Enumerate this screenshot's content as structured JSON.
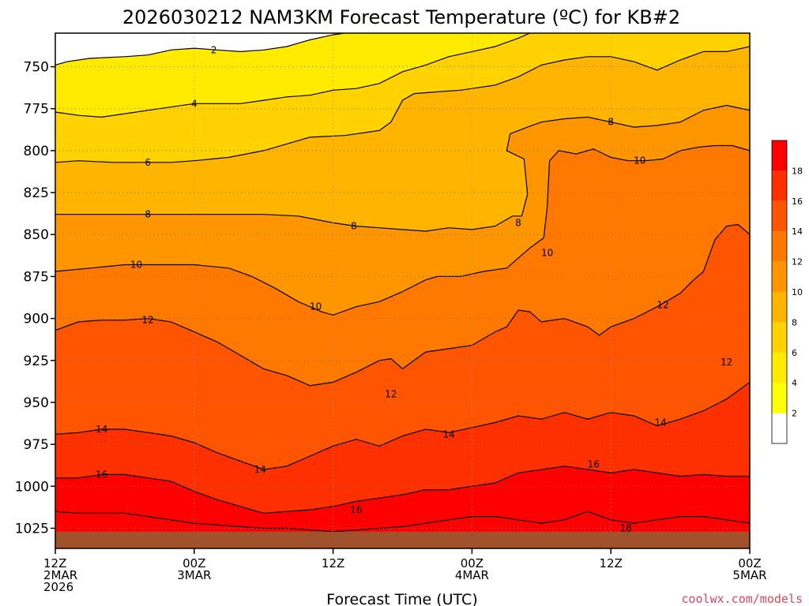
{
  "chart_data": {
    "type": "contour",
    "title": "2026030212 NAM3KM Forecast Temperature (ºC) for KB#2",
    "xlabel": "Forecast Time (UTC)",
    "ylabel": "",
    "x_ticks": [
      {
        "hour": 0,
        "lines": [
          "12Z",
          "2MAR",
          "2026"
        ]
      },
      {
        "hour": 12,
        "lines": [
          "00Z",
          "3MAR"
        ]
      },
      {
        "hour": 24,
        "lines": [
          "12Z"
        ]
      },
      {
        "hour": 36,
        "lines": [
          "00Z",
          "4MAR"
        ]
      },
      {
        "hour": 48,
        "lines": [
          "12Z"
        ]
      },
      {
        "hour": 60,
        "lines": [
          "00Z",
          "5MAR"
        ]
      }
    ],
    "xlim": [
      0,
      60
    ],
    "y_ticks": [
      750,
      775,
      800,
      825,
      850,
      875,
      900,
      925,
      950,
      975,
      1000,
      1025
    ],
    "ylim": [
      730,
      1037
    ],
    "y_inverted": true,
    "surface_pressure_hPa": 1027,
    "grid": true,
    "colorbar": {
      "levels": [
        2,
        4,
        6,
        8,
        10,
        12,
        14,
        16,
        18
      ],
      "colors": [
        "#ffffff",
        "#ffff00",
        "#ffea00",
        "#ffd200",
        "#ffb400",
        "#ff9600",
        "#ff7800",
        "#ff5400",
        "#ff3000",
        "#ff0000"
      ],
      "placement": "right"
    },
    "isotherms": [
      {
        "level": 2,
        "labels": [
          {
            "hour": 13.7,
            "p": 740
          }
        ],
        "points": [
          [
            0,
            749
          ],
          [
            1,
            747
          ],
          [
            3,
            745
          ],
          [
            6,
            744
          ],
          [
            8,
            743
          ],
          [
            10,
            740
          ],
          [
            12,
            739
          ],
          [
            14,
            740
          ],
          [
            16,
            741
          ],
          [
            18,
            740
          ],
          [
            20,
            738
          ],
          [
            22,
            734
          ],
          [
            24,
            731
          ],
          [
            25,
            730
          ]
        ]
      },
      {
        "level": 4,
        "labels": [
          {
            "hour": 12,
            "p": 772
          }
        ],
        "points": [
          [
            0,
            777
          ],
          [
            2,
            779
          ],
          [
            4,
            780
          ],
          [
            6,
            778
          ],
          [
            9,
            775
          ],
          [
            12,
            772
          ],
          [
            14,
            772
          ],
          [
            16,
            772
          ],
          [
            18,
            770
          ],
          [
            20,
            768
          ],
          [
            22,
            767
          ],
          [
            24,
            764
          ],
          [
            26,
            763
          ],
          [
            28,
            760
          ],
          [
            30,
            753
          ],
          [
            32,
            749
          ],
          [
            34,
            744
          ],
          [
            36,
            741
          ],
          [
            38,
            738
          ],
          [
            40,
            733
          ],
          [
            41,
            730
          ]
        ]
      },
      {
        "level": 6,
        "labels": [
          {
            "hour": 8,
            "p": 807
          }
        ],
        "points": [
          [
            0,
            807
          ],
          [
            2,
            806
          ],
          [
            5,
            807
          ],
          [
            8,
            807
          ],
          [
            10,
            807
          ],
          [
            12,
            806
          ],
          [
            15,
            804
          ],
          [
            18,
            800
          ],
          [
            20,
            796
          ],
          [
            22,
            792
          ],
          [
            25,
            791
          ],
          [
            28,
            788
          ],
          [
            29,
            783
          ],
          [
            30,
            770
          ],
          [
            31,
            766
          ],
          [
            33,
            765
          ],
          [
            35,
            764
          ],
          [
            36,
            763
          ],
          [
            38,
            761
          ],
          [
            40,
            756
          ],
          [
            42,
            749
          ],
          [
            44,
            746
          ],
          [
            46,
            744
          ],
          [
            48,
            744
          ],
          [
            50,
            747
          ],
          [
            52,
            752
          ],
          [
            54,
            746
          ],
          [
            56,
            741
          ],
          [
            58,
            741
          ],
          [
            60,
            738
          ]
        ]
      },
      {
        "level": 8,
        "labels": [
          {
            "hour": 8,
            "p": 838
          },
          {
            "hour": 25.8,
            "p": 845
          },
          {
            "hour": 40,
            "p": 843
          },
          {
            "hour": 48,
            "p": 783
          }
        ],
        "points": [
          [
            0,
            838
          ],
          [
            3,
            838
          ],
          [
            6,
            838
          ],
          [
            9,
            838
          ],
          [
            12,
            838
          ],
          [
            15,
            838
          ],
          [
            18,
            838
          ],
          [
            21,
            839
          ],
          [
            24,
            843
          ],
          [
            26,
            845
          ],
          [
            28,
            846
          ],
          [
            30,
            847
          ],
          [
            32,
            848
          ],
          [
            34,
            846
          ],
          [
            36,
            847
          ],
          [
            38,
            845
          ],
          [
            39.5,
            839
          ],
          [
            40.3,
            839
          ],
          [
            40.8,
            826
          ],
          [
            40.5,
            805
          ],
          [
            39,
            800
          ],
          [
            39.3,
            790
          ],
          [
            40.8,
            786
          ],
          [
            42,
            783
          ],
          [
            44,
            781
          ],
          [
            46,
            780
          ],
          [
            48,
            783
          ],
          [
            50,
            786
          ],
          [
            52,
            785
          ],
          [
            54,
            783
          ],
          [
            56,
            776
          ],
          [
            58,
            773
          ],
          [
            60,
            776
          ]
        ]
      },
      {
        "level": 10,
        "labels": [
          {
            "hour": 7,
            "p": 868
          },
          {
            "hour": 22.5,
            "p": 893
          },
          {
            "hour": 42.5,
            "p": 861
          },
          {
            "hour": 50.5,
            "p": 806
          }
        ],
        "points": [
          [
            0,
            872
          ],
          [
            3,
            870
          ],
          [
            6,
            868
          ],
          [
            9,
            868
          ],
          [
            12,
            868
          ],
          [
            15,
            870
          ],
          [
            17,
            875
          ],
          [
            19,
            882
          ],
          [
            21,
            890
          ],
          [
            23,
            896
          ],
          [
            24,
            898
          ],
          [
            26,
            893
          ],
          [
            28,
            890
          ],
          [
            30,
            884
          ],
          [
            32,
            877
          ],
          [
            33,
            875
          ],
          [
            35,
            875
          ],
          [
            37,
            872
          ],
          [
            39,
            870
          ],
          [
            41,
            858
          ],
          [
            42.2,
            852
          ],
          [
            42.5,
            834
          ],
          [
            42.7,
            806
          ],
          [
            43.5,
            800
          ],
          [
            45,
            802
          ],
          [
            46.5,
            799
          ],
          [
            48,
            804
          ],
          [
            49.5,
            806
          ],
          [
            51,
            806
          ],
          [
            52.5,
            805
          ],
          [
            54,
            800
          ],
          [
            55.5,
            798
          ],
          [
            57,
            797
          ],
          [
            58.5,
            797
          ],
          [
            60,
            800
          ]
        ]
      },
      {
        "level": 12,
        "labels": [
          {
            "hour": 8,
            "p": 901
          },
          {
            "hour": 58,
            "p": 926
          },
          {
            "hour": 29,
            "p": 945
          },
          {
            "hour": 52.5,
            "p": 892
          }
        ],
        "points": [
          [
            0,
            907
          ],
          [
            2,
            902
          ],
          [
            4,
            901
          ],
          [
            6,
            901
          ],
          [
            8,
            900
          ],
          [
            10,
            902
          ],
          [
            12,
            908
          ],
          [
            14,
            914
          ],
          [
            16,
            922
          ],
          [
            18,
            930
          ],
          [
            20,
            934
          ],
          [
            22,
            940
          ],
          [
            24,
            938
          ],
          [
            26,
            932
          ],
          [
            28,
            925
          ],
          [
            29,
            924
          ],
          [
            30,
            930
          ],
          [
            32,
            920
          ],
          [
            34,
            918
          ],
          [
            36,
            916
          ],
          [
            38,
            908
          ],
          [
            39,
            905
          ],
          [
            40,
            895
          ],
          [
            41,
            896
          ],
          [
            42,
            902
          ],
          [
            44,
            900
          ],
          [
            46,
            905
          ],
          [
            47,
            910
          ],
          [
            48,
            905
          ],
          [
            50,
            900
          ],
          [
            52,
            893
          ],
          [
            54,
            885
          ],
          [
            55,
            878
          ],
          [
            56,
            872
          ],
          [
            57,
            853
          ],
          [
            58,
            845
          ],
          [
            59,
            844
          ],
          [
            60,
            850
          ]
        ]
      },
      {
        "level": 14,
        "labels": [
          {
            "hour": 4,
            "p": 966
          },
          {
            "hour": 17.7,
            "p": 990
          },
          {
            "hour": 34,
            "p": 969
          },
          {
            "hour": 52.3,
            "p": 962
          }
        ],
        "points": [
          [
            0,
            969
          ],
          [
            2,
            968
          ],
          [
            4,
            966
          ],
          [
            6,
            966
          ],
          [
            8,
            968
          ],
          [
            10,
            970
          ],
          [
            12,
            974
          ],
          [
            14,
            980
          ],
          [
            16,
            985
          ],
          [
            18,
            990
          ],
          [
            20,
            988
          ],
          [
            22,
            982
          ],
          [
            24,
            976
          ],
          [
            26,
            972
          ],
          [
            28,
            976
          ],
          [
            30,
            970
          ],
          [
            32,
            966
          ],
          [
            34,
            968
          ],
          [
            36,
            965
          ],
          [
            38,
            962
          ],
          [
            40,
            958
          ],
          [
            42,
            960
          ],
          [
            44,
            956
          ],
          [
            46,
            960
          ],
          [
            48,
            956
          ],
          [
            50,
            958
          ],
          [
            52,
            964
          ],
          [
            54,
            960
          ],
          [
            56,
            955
          ],
          [
            58,
            948
          ],
          [
            60,
            938
          ]
        ]
      },
      {
        "level": 16,
        "labels": [
          {
            "hour": 4,
            "p": 993
          },
          {
            "hour": 26,
            "p": 1014
          },
          {
            "hour": 46.5,
            "p": 987
          }
        ],
        "points": [
          [
            0,
            995
          ],
          [
            2,
            995
          ],
          [
            4,
            993
          ],
          [
            6,
            993
          ],
          [
            8,
            995
          ],
          [
            10,
            997
          ],
          [
            12,
            1003
          ],
          [
            14,
            1008
          ],
          [
            16,
            1012
          ],
          [
            18,
            1016
          ],
          [
            20,
            1015
          ],
          [
            22,
            1014
          ],
          [
            24,
            1012
          ],
          [
            26,
            1009
          ],
          [
            28,
            1007
          ],
          [
            30,
            1005
          ],
          [
            32,
            1002
          ],
          [
            34,
            1002
          ],
          [
            36,
            1000
          ],
          [
            38,
            998
          ],
          [
            40,
            992
          ],
          [
            42,
            990
          ],
          [
            44,
            988
          ],
          [
            46,
            990
          ],
          [
            48,
            992
          ],
          [
            50,
            990
          ],
          [
            52,
            992
          ],
          [
            54,
            994
          ],
          [
            56,
            993
          ],
          [
            58,
            994
          ],
          [
            60,
            994
          ]
        ]
      },
      {
        "level": 18,
        "labels": [
          {
            "hour": 49.3,
            "p": 1025
          }
        ],
        "points": [
          [
            0,
            1015
          ],
          [
            2,
            1016
          ],
          [
            4,
            1016
          ],
          [
            6,
            1016
          ],
          [
            8,
            1018
          ],
          [
            10,
            1020
          ],
          [
            12,
            1022
          ],
          [
            14,
            1023
          ],
          [
            16,
            1024
          ],
          [
            18,
            1025
          ],
          [
            20,
            1025
          ],
          [
            22,
            1026
          ],
          [
            24,
            1027
          ],
          [
            26,
            1026
          ],
          [
            28,
            1025
          ],
          [
            30,
            1024
          ],
          [
            32,
            1022
          ],
          [
            34,
            1020
          ],
          [
            36,
            1018
          ],
          [
            38,
            1018
          ],
          [
            40,
            1020
          ],
          [
            42,
            1022
          ],
          [
            44,
            1020
          ],
          [
            46,
            1015
          ],
          [
            48,
            1020
          ],
          [
            50,
            1022
          ],
          [
            52,
            1020
          ],
          [
            54,
            1018
          ],
          [
            56,
            1018
          ],
          [
            58,
            1020
          ],
          [
            60,
            1022
          ]
        ]
      }
    ]
  },
  "credit": "coolwx.com/models"
}
